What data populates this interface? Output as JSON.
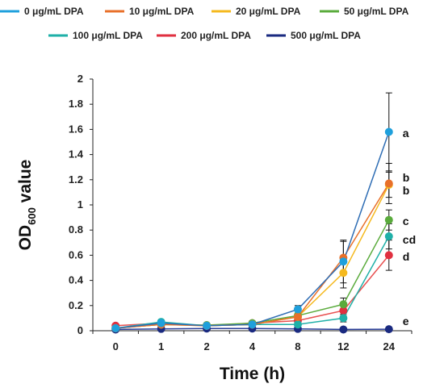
{
  "chart_data": {
    "type": "line",
    "xlabel": "Time (h)",
    "ylabel": {
      "main": "OD",
      "sub": "600",
      "suffix": " value"
    },
    "categories": [
      "0",
      "1",
      "2",
      "4",
      "8",
      "12",
      "24"
    ],
    "ylim": [
      0,
      2
    ],
    "yticks": [
      "0",
      "0.2",
      "0.4",
      "0.6",
      "0.8",
      "1",
      "1.2",
      "1.4",
      "1.6",
      "1.8",
      "2"
    ],
    "grid": false,
    "legend_position": "top",
    "series": [
      {
        "name": "0 μg/mL DPA",
        "color": "#1fa0dc",
        "line_color": "#2e6db4",
        "values": [
          0.02,
          0.06,
          0.04,
          0.05,
          0.17,
          0.55,
          1.58
        ],
        "errors": [
          0.005,
          0.01,
          0.01,
          0.01,
          0.03,
          0.17,
          0.31
        ],
        "letter": "a"
      },
      {
        "name": "10 μg/mL DPA",
        "color": "#e8702a",
        "line_color": "#e8702a",
        "values": [
          0.02,
          0.05,
          0.04,
          0.05,
          0.11,
          0.58,
          1.17
        ],
        "errors": [
          0.005,
          0.01,
          0.01,
          0.01,
          0.02,
          0.13,
          0.16
        ],
        "letter": "b"
      },
      {
        "name": "20 μg/mL DPA",
        "color": "#f5b91e",
        "line_color": "#f5b91e",
        "values": [
          0.02,
          0.05,
          0.04,
          0.05,
          0.11,
          0.46,
          1.16
        ],
        "errors": [
          0.005,
          0.01,
          0.01,
          0.01,
          0.02,
          0.12,
          0.1
        ],
        "letter": "b"
      },
      {
        "name": "50 μg/mL DPA",
        "color": "#5aab3c",
        "line_color": "#5aab3c",
        "values": [
          0.02,
          0.05,
          0.045,
          0.06,
          0.12,
          0.21,
          0.88
        ],
        "errors": [
          0.005,
          0.01,
          0.01,
          0.01,
          0.02,
          0.05,
          0.08
        ],
        "letter": "c"
      },
      {
        "name": "100 μg/mL DPA",
        "color": "#1fb0a8",
        "line_color": "#1fb0a8",
        "values": [
          0.02,
          0.07,
          0.04,
          0.05,
          0.05,
          0.1,
          0.75
        ],
        "errors": [
          0.005,
          0.01,
          0.01,
          0.01,
          0.01,
          0.03,
          0.1
        ],
        "letter": "cd"
      },
      {
        "name": "200 μg/mL DPA",
        "color": "#e03040",
        "line_color": "#e85050",
        "values": [
          0.04,
          0.06,
          0.04,
          0.06,
          0.08,
          0.16,
          0.6
        ],
        "errors": [
          0.005,
          0.01,
          0.01,
          0.01,
          0.01,
          0.04,
          0.12
        ],
        "letter": "d"
      },
      {
        "name": "500 μg/mL DPA",
        "color": "#1a2a80",
        "line_color": "#2a3f9a",
        "values": [
          0.01,
          0.015,
          0.018,
          0.018,
          0.015,
          0.01,
          0.012
        ],
        "errors": [
          0.002,
          0.003,
          0.003,
          0.003,
          0.003,
          0.002,
          0.002
        ],
        "letter": "e"
      }
    ]
  }
}
